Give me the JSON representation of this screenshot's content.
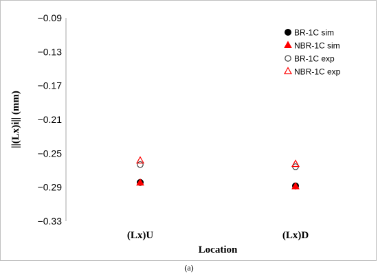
{
  "chart_data": {
    "type": "scatter",
    "categories": [
      "(Lx)U",
      "(Lx)D"
    ],
    "xlabel": "Location",
    "ylabel": "||(Lx)i|| (mm)",
    "ylim": [
      -0.33,
      -0.09
    ],
    "yticks": [
      "−0.09",
      "−0.13",
      "−0.17",
      "−0.21",
      "−0.25",
      "−0.29",
      "−0.33"
    ],
    "ytick_values": [
      -0.09,
      -0.13,
      -0.17,
      -0.21,
      -0.25,
      -0.29,
      -0.33
    ],
    "grid": false,
    "legend_position": "top-right",
    "series": [
      {
        "name": "BR-1C sim",
        "marker": "circle-filled",
        "color": "#000000",
        "values": [
          -0.2844,
          -0.2885
        ]
      },
      {
        "name": "NBR-1C sim",
        "marker": "triangle-filled",
        "color": "#ff0000",
        "values": [
          -0.2848,
          -0.2892
        ]
      },
      {
        "name": "BR-1C exp",
        "marker": "circle-open",
        "color": "#404040",
        "values": [
          -0.2633,
          -0.2658
        ]
      },
      {
        "name": "NBR-1C exp",
        "marker": "triangle-open",
        "color": "#ff0000",
        "values": [
          -0.2587,
          -0.2627
        ]
      }
    ]
  },
  "caption": "(a)"
}
